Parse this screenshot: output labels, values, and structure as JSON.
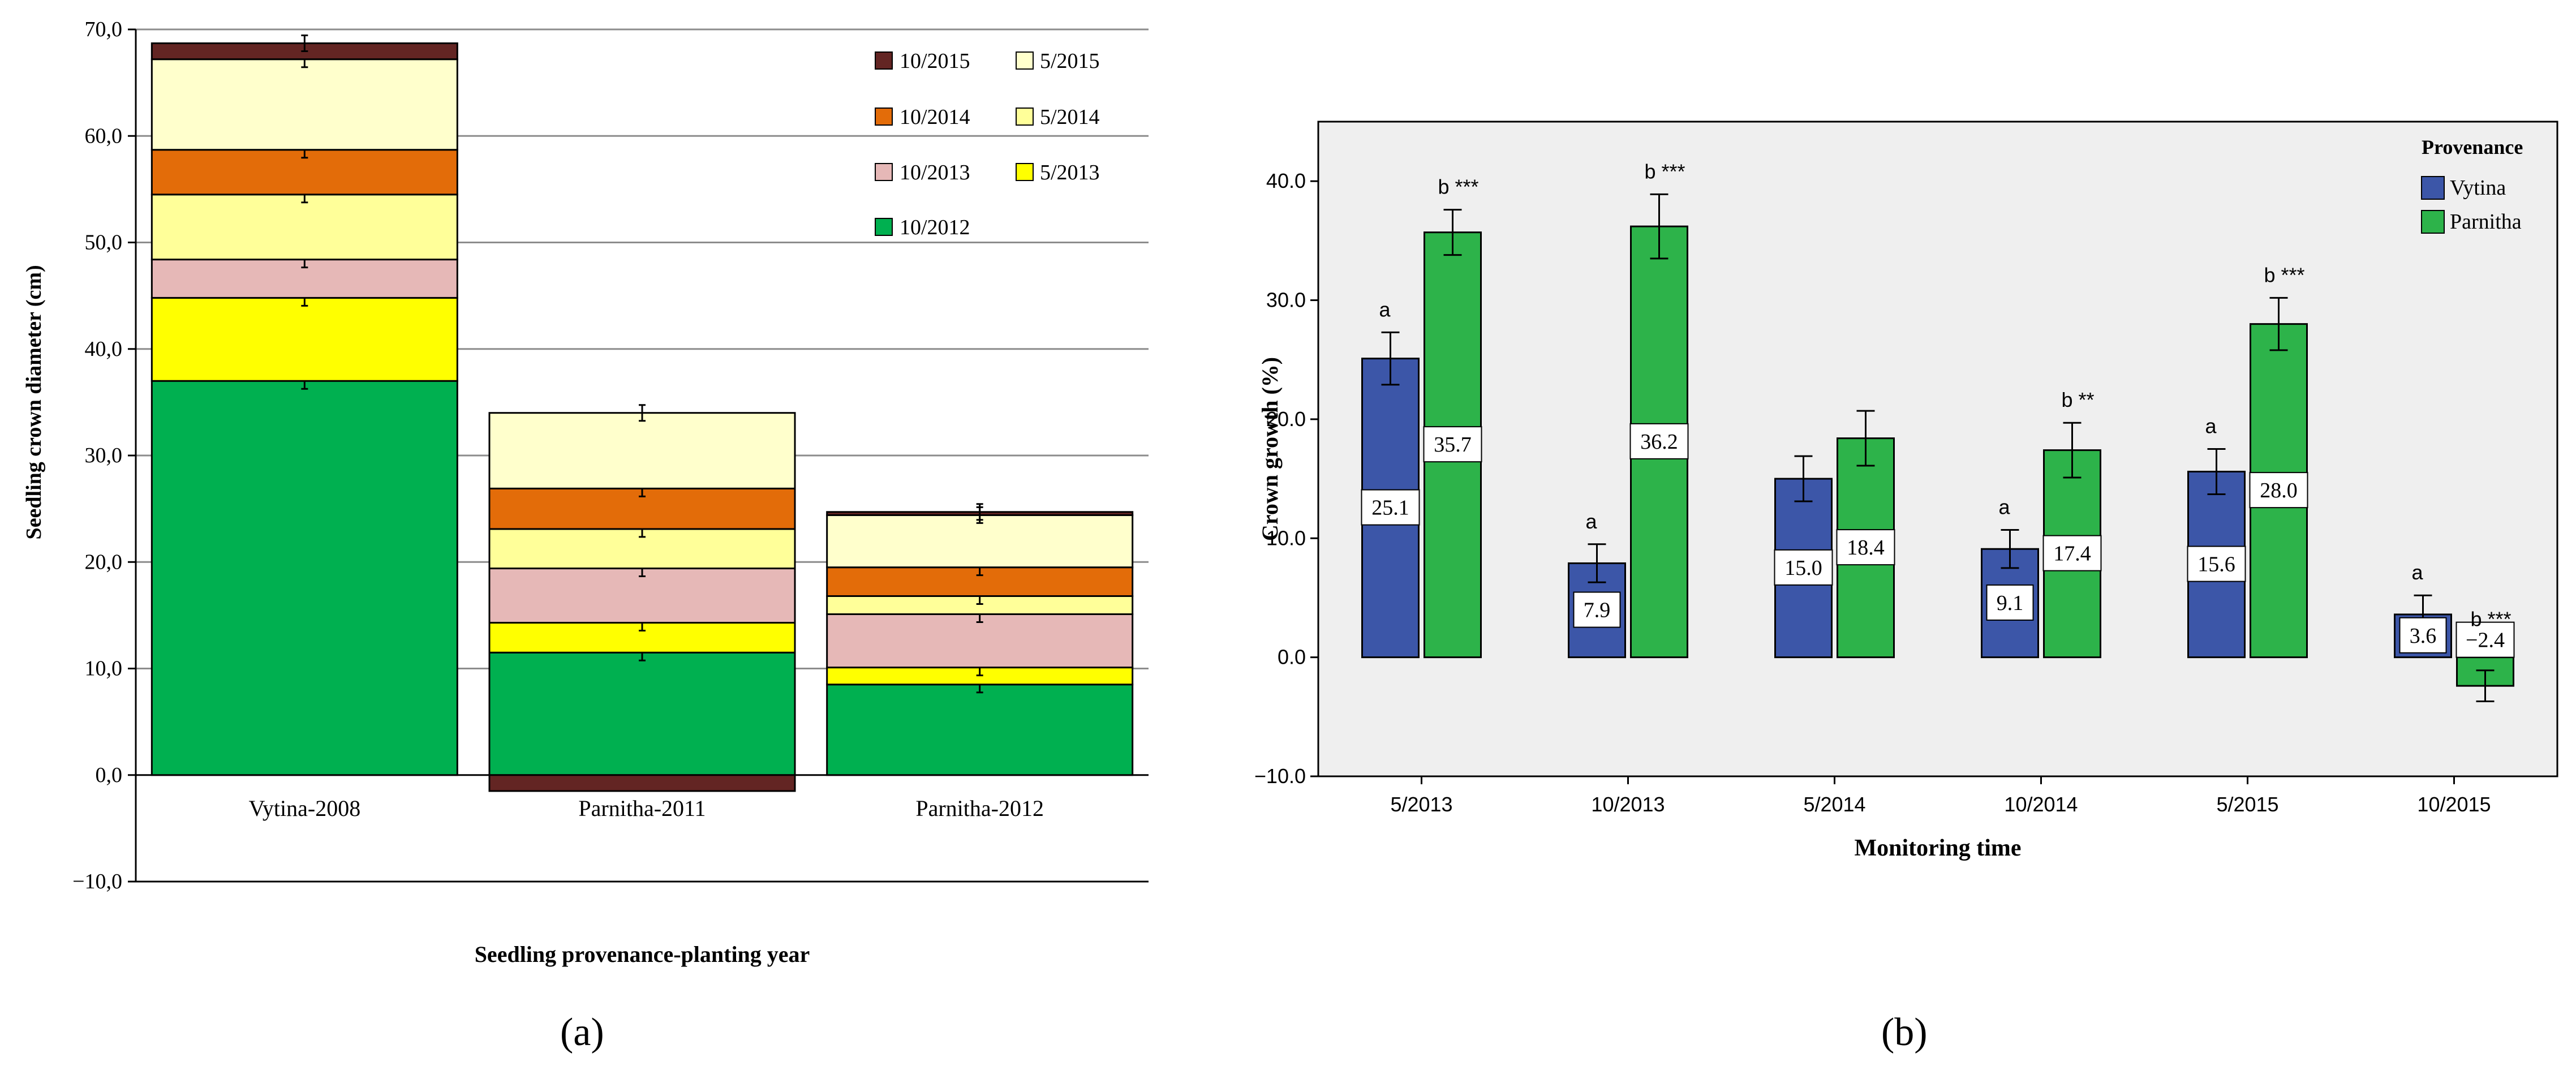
{
  "colors": {
    "10/2012": "#00b050",
    "5/2013": "#ffff00",
    "10/2013": "#e6b8b7",
    "5/2014": "#ffff99",
    "10/2014": "#e36c09",
    "5/2015": "#ffffcc",
    "10/2015": "#632523",
    "vytina": "#3c56a8",
    "parnitha": "#2db34a",
    "plot_bg_b": "#efefef"
  },
  "chart_data": [
    {
      "type": "bar",
      "stacked": true,
      "panel_label": "(a)",
      "xlabel": "Seedling provenance-planting year",
      "ylabel": "Seedling crown diameter (cm)",
      "ylim": [
        -10,
        70
      ],
      "yticks": [
        "70,0",
        "60,0",
        "50,0",
        "40,0",
        "30,0",
        "20,0",
        "10,0",
        "0,0",
        "−10,0"
      ],
      "grid": true,
      "legend_position": "top-right",
      "categories": [
        "Vytina-2008",
        "Parnitha-2011",
        "Parnitha-2012"
      ],
      "series": [
        {
          "name": "10/2012",
          "values": [
            37.0,
            11.5,
            8.5
          ]
        },
        {
          "name": "5/2013",
          "values": [
            7.8,
            2.8,
            1.6
          ]
        },
        {
          "name": "10/2013",
          "values": [
            3.6,
            5.1,
            5.0
          ]
        },
        {
          "name": "5/2014",
          "values": [
            6.1,
            3.7,
            1.7
          ]
        },
        {
          "name": "10/2014",
          "values": [
            4.2,
            3.8,
            2.7
          ]
        },
        {
          "name": "5/2015",
          "values": [
            8.5,
            7.1,
            4.9
          ]
        },
        {
          "name": "10/2015",
          "values": [
            1.5,
            -1.5,
            0.3
          ]
        }
      ],
      "legend": {
        "col1": [
          "10/2015",
          "10/2014",
          "10/2013",
          "10/2012"
        ],
        "col2": [
          "5/2015",
          "5/2014",
          "5/2013"
        ]
      }
    },
    {
      "type": "bar",
      "panel_label": "(b)",
      "xlabel": "Monitoring time",
      "ylabel": "Crown growth (%)",
      "ylim": [
        -10,
        45
      ],
      "yticks": [
        "40.0",
        "30.0",
        "20.0",
        "10.0",
        "0.0",
        "−10.0"
      ],
      "grid": false,
      "legend_title": "Provenance",
      "legend_position": "top-right",
      "categories": [
        "5/2013",
        "10/2013",
        "5/2014",
        "10/2014",
        "5/2015",
        "10/2015"
      ],
      "series": [
        {
          "name": "Vytina",
          "values": [
            25.1,
            7.9,
            15.0,
            9.1,
            15.6,
            3.6
          ],
          "labels": [
            "25.1",
            "7.9",
            "15.0",
            "9.1",
            "15.6",
            "3.6"
          ],
          "error": [
            2.2,
            1.6,
            1.9,
            1.6,
            1.9,
            1.6
          ],
          "sig": [
            "a",
            "a",
            "",
            "a",
            "a",
            "a"
          ]
        },
        {
          "name": "Parnitha",
          "values": [
            35.7,
            36.2,
            18.4,
            17.4,
            28.0,
            -2.4
          ],
          "labels": [
            "35.7",
            "36.2",
            "18.4",
            "17.4",
            "28.0",
            "−2.4"
          ],
          "error": [
            1.9,
            2.7,
            2.3,
            2.3,
            2.2,
            1.3
          ],
          "sig": [
            "b ***",
            "b ***",
            "",
            "b **",
            "b ***",
            "b ***"
          ]
        }
      ]
    }
  ]
}
